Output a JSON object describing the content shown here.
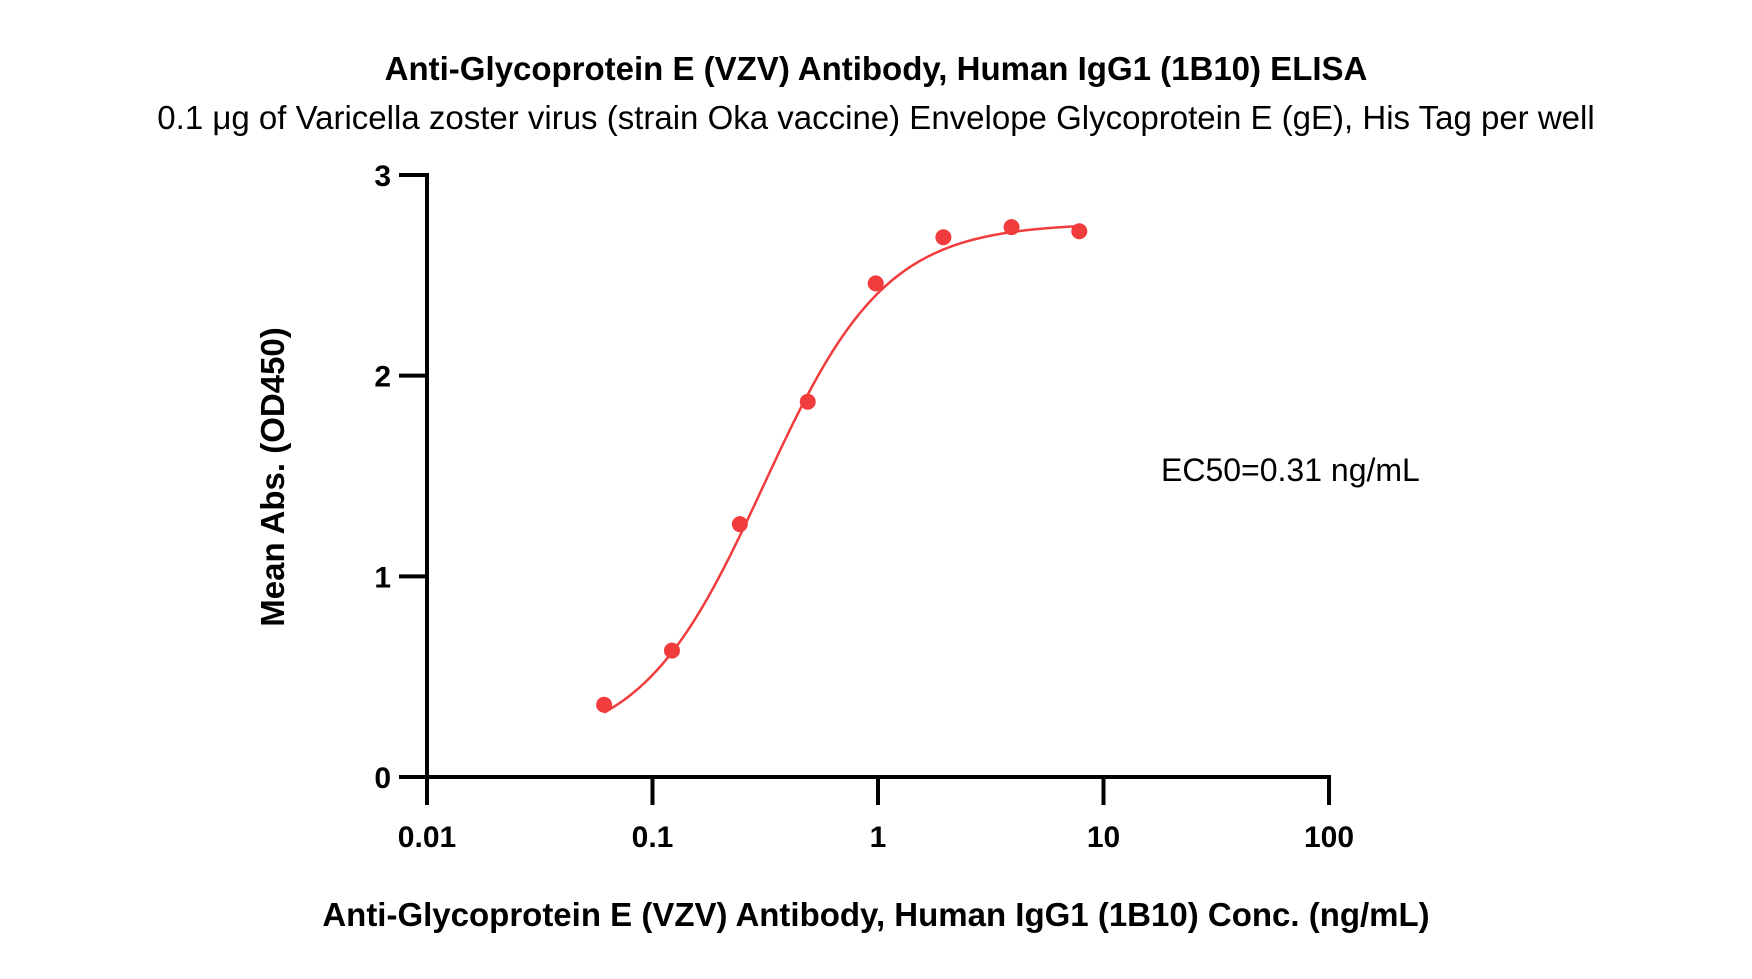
{
  "chart_data": {
    "type": "scatter",
    "title": "Anti-Glycoprotein E (VZV) Antibody, Human IgG1 (1B10) ELISA",
    "subtitle": "0.1 μg of Varicella zoster virus (strain Oka vaccine) Envelope Glycoprotein E (gE), His Tag per well",
    "xlabel": "Anti-Glycoprotein E (VZV) Antibody, Human IgG1 (1B10) Conc. (ng/mL)",
    "ylabel": "Mean Abs. (OD450)",
    "xscale": "log",
    "xlim": [
      0.01,
      100
    ],
    "ylim": [
      0,
      3
    ],
    "xticks": [
      "0.01",
      "0.1",
      "1",
      "10",
      "100"
    ],
    "yticks": [
      "0",
      "1",
      "2",
      "3"
    ],
    "grid": false,
    "series": [
      {
        "color": "#f03c3c",
        "x": [
          0.061,
          0.122,
          0.244,
          0.488,
          0.977,
          1.95,
          3.91,
          7.81
        ],
        "y": [
          0.36,
          0.63,
          1.26,
          1.87,
          2.46,
          2.69,
          2.74,
          2.72
        ]
      }
    ],
    "fit_curve": {
      "model": "4PL",
      "bottom": 0.14,
      "top": 2.76,
      "ec50": 0.31,
      "hill": 1.6,
      "color": "#f03c3c"
    },
    "annotations": [
      "EC50=0.31 ng/mL"
    ]
  }
}
